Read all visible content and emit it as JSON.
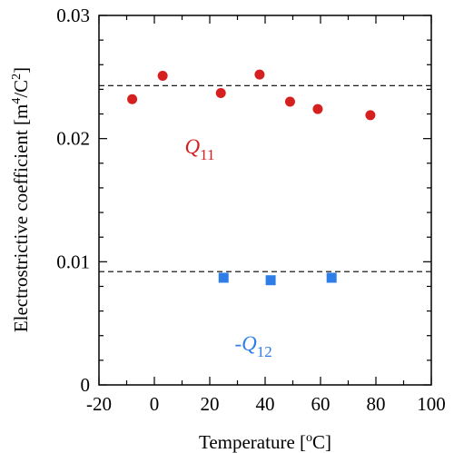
{
  "chart_data": {
    "type": "scatter",
    "xlabel": {
      "main": "Temperature [",
      "sup": "o",
      "end": "C]"
    },
    "ylabel": {
      "main": "Electrostrictive coefficient [m",
      "sup1": "4",
      "mid": "/C",
      "sup2": "2",
      "end": "]"
    },
    "xlim": [
      -20,
      100
    ],
    "ylim": [
      0,
      0.03
    ],
    "xticks": [
      -20,
      0,
      20,
      40,
      60,
      80,
      100
    ],
    "xtick_labels": [
      "-20",
      "0",
      "20",
      "40",
      "60",
      "80",
      "100"
    ],
    "yticks": [
      0,
      0.01,
      0.02,
      0.03
    ],
    "ytick_labels": [
      "0",
      "0.01",
      "0.02",
      "0.03"
    ],
    "grid": false,
    "series": [
      {
        "name": "Q11",
        "marker": "circle",
        "color": "#d61f1f",
        "x": [
          -8,
          3,
          24,
          38,
          49,
          59,
          78
        ],
        "y": [
          0.0232,
          0.0251,
          0.0237,
          0.0252,
          0.023,
          0.0224,
          0.0219
        ],
        "reference_line": 0.0243
      },
      {
        "name": "-Q12",
        "marker": "square",
        "color": "#2f7ee8",
        "x": [
          25,
          42,
          64
        ],
        "y": [
          0.0087,
          0.0085,
          0.0087
        ],
        "reference_line": 0.0092
      }
    ],
    "annotations": [
      {
        "prefix": "",
        "main": "Q",
        "sub": "11",
        "color": "#d61f1f",
        "at": [
          11,
          0.0188
        ]
      },
      {
        "prefix": "-",
        "main": "Q",
        "sub": "12",
        "color": "#2f7ee8",
        "at": [
          29,
          0.0028
        ]
      }
    ]
  }
}
